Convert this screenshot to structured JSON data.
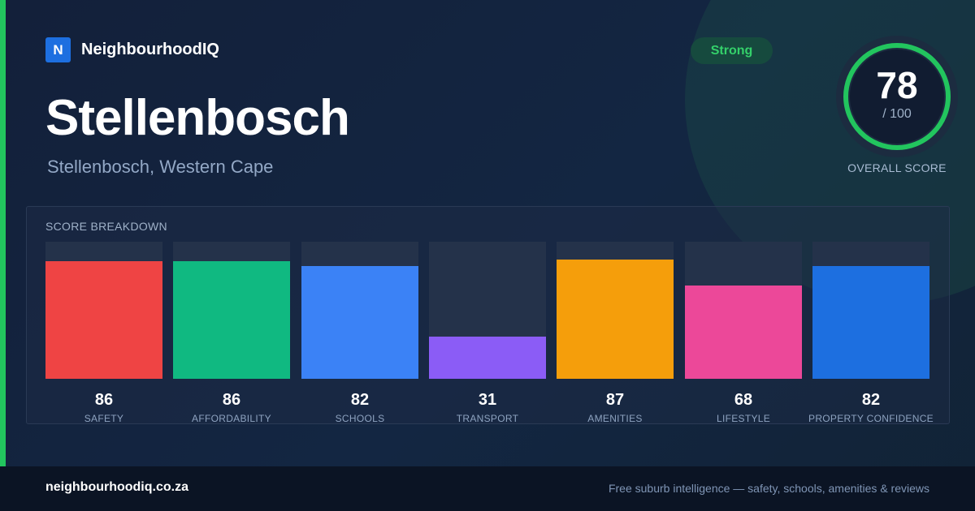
{
  "brand": {
    "mark": "N",
    "name": "NeighbourhoodIQ"
  },
  "header": {
    "title": "Stellenbosch",
    "subtitle": "Stellenbosch, Western Cape",
    "badge": "Strong"
  },
  "overall": {
    "score": 78,
    "max_label": "/ 100",
    "label": "OVERALL SCORE",
    "max": 100
  },
  "breakdown": {
    "heading": "SCORE BREAKDOWN",
    "max": 100,
    "items": [
      {
        "label": "SAFETY",
        "value": 86,
        "color": "#ef4444"
      },
      {
        "label": "AFFORDABILITY",
        "value": 86,
        "color": "#10b981"
      },
      {
        "label": "SCHOOLS",
        "value": 82,
        "color": "#3b82f6"
      },
      {
        "label": "TRANSPORT",
        "value": 31,
        "color": "#8b5cf6"
      },
      {
        "label": "AMENITIES",
        "value": 87,
        "color": "#f59e0b"
      },
      {
        "label": "LIFESTYLE",
        "value": 68,
        "color": "#ec4899"
      },
      {
        "label": "PROPERTY CONFIDENCE",
        "value": 82,
        "color": "#1d6fe0"
      }
    ]
  },
  "footer": {
    "domain": "neighbourhoodiq.co.za",
    "tagline": "Free suburb intelligence — safety, schools, amenities & reviews"
  },
  "colors": {
    "accent": "#22c55e",
    "background": "#13203a"
  }
}
